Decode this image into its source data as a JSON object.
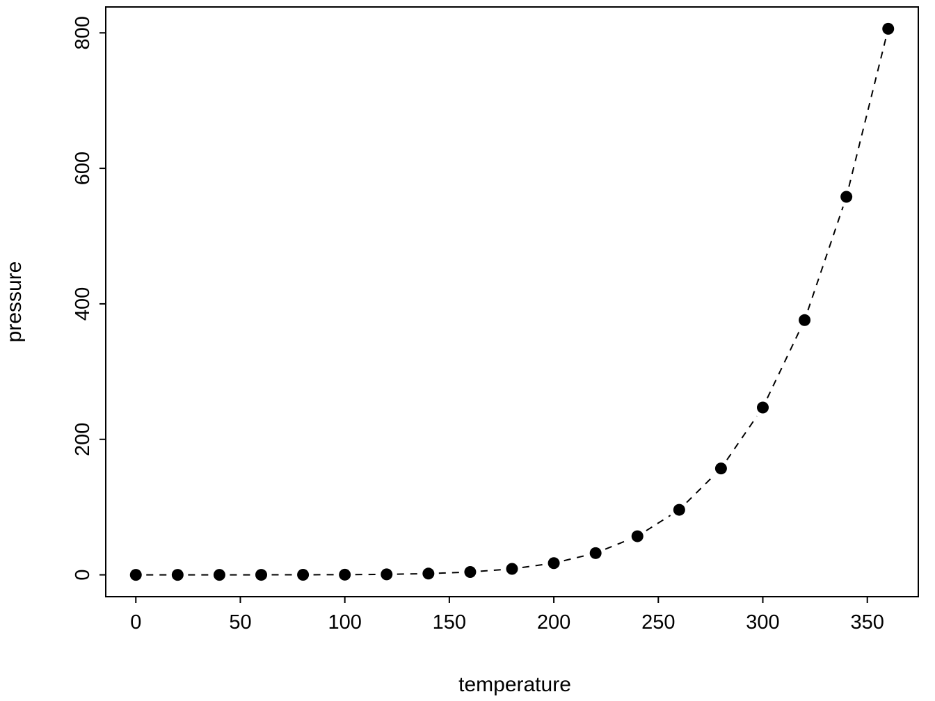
{
  "chart_data": {
    "type": "line",
    "title": "",
    "xlabel": "temperature",
    "ylabel": "pressure",
    "x": [
      0,
      20,
      40,
      60,
      80,
      100,
      120,
      140,
      160,
      180,
      200,
      220,
      240,
      260,
      280,
      300,
      320,
      340,
      360
    ],
    "y": [
      0.0002,
      0.0012,
      0.006,
      0.03,
      0.09,
      0.27,
      0.75,
      1.85,
      4.2,
      8.8,
      17.3,
      32.1,
      57.0,
      96.0,
      157.0,
      247.0,
      376.0,
      558.0,
      806.0
    ],
    "x_ticks": [
      0,
      50,
      100,
      150,
      200,
      250,
      300,
      350
    ],
    "y_ticks": [
      0,
      200,
      400,
      600,
      800
    ],
    "xlim": [
      0,
      360
    ],
    "ylim": [
      0,
      806
    ],
    "line_style": "dashed",
    "marker": "filled-circle",
    "color": "#000000",
    "background": "#ffffff",
    "grid": false,
    "legend": null
  }
}
